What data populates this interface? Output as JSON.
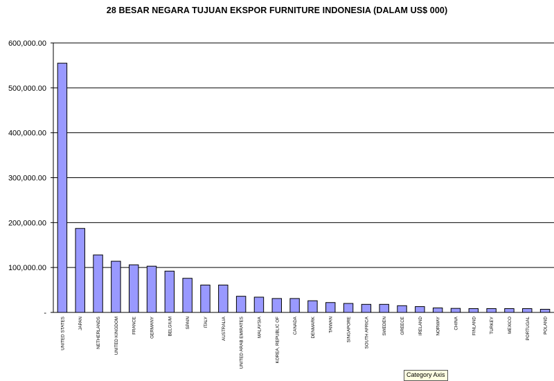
{
  "chart_data": {
    "type": "bar",
    "title": "28 BESAR NEGARA TUJUAN EKSPOR FURNITURE INDONESIA (DALAM US$ 000)",
    "xlabel": "",
    "ylabel": "",
    "ylim": [
      0,
      600000
    ],
    "yticks": [
      "-",
      "100,000.00",
      "200,000.00",
      "300,000.00",
      "400,000.00",
      "500,000.00",
      "600,000.00"
    ],
    "grid": true,
    "legend": "none",
    "bar_color": "#9999ff",
    "categories": [
      "UNITED STATES",
      "JAPAN",
      "NETHERLANDS",
      "UNITED KINGDOM",
      "FRANCE",
      "GERMANY",
      "BELGIUM",
      "SPAIN",
      "ITALY",
      "AUSTRALIA",
      "UNITED ARAB EMIRATES",
      "MALAYSIA",
      "KOREA, REPUBLIC OF",
      "CANADA",
      "DENMARK",
      "TAIWAN",
      "SINGAPORE",
      "SOUTH AFRICA",
      "SWEDEN",
      "GREECE",
      "IRELAND",
      "NORWAY",
      "CHINA",
      "FINLAND",
      "TURKEY",
      "MEXICO",
      "PORTUGAL",
      "POLAND"
    ],
    "values": [
      555000,
      187000,
      128000,
      114000,
      106000,
      103000,
      92000,
      76000,
      61000,
      61000,
      36000,
      34000,
      31000,
      31000,
      26000,
      22000,
      20000,
      18000,
      18000,
      15000,
      13000,
      10000,
      9000,
      8500,
      8500,
      8500,
      8500,
      7000
    ]
  },
  "tooltip_text": "Category Axis"
}
